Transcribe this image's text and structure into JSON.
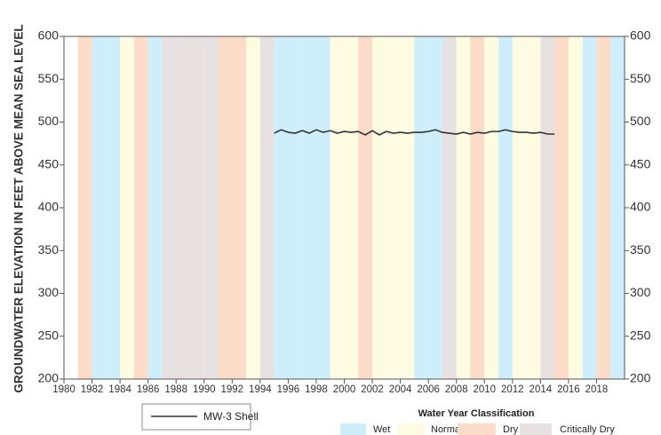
{
  "chart_data": {
    "type": "line",
    "y_label": "GROUNDWATER ELEVATION IN FEET ABOVE MEAN SEA LEVEL",
    "xlim": [
      1980,
      2020
    ],
    "xticks": [
      1980,
      1982,
      1984,
      1986,
      1988,
      1990,
      1992,
      1994,
      1996,
      1998,
      2000,
      2002,
      2004,
      2006,
      2008,
      2010,
      2012,
      2014,
      2016,
      2018
    ],
    "ylim": [
      200,
      600
    ],
    "yticks": [
      200,
      250,
      300,
      350,
      400,
      450,
      500,
      550,
      600
    ],
    "series": [
      {
        "name": "MW-3 Shell",
        "color": "#333333",
        "x": [
          1995,
          1995.5,
          1996,
          1996.5,
          1997,
          1997.5,
          1998,
          1998.5,
          1999,
          1999.5,
          2000,
          2000.5,
          2001,
          2001.5,
          2002,
          2002.5,
          2003,
          2003.5,
          2004,
          2004.5,
          2005,
          2005.5,
          2006,
          2006.5,
          2007,
          2007.5,
          2008,
          2008.5,
          2009,
          2009.5,
          2010,
          2010.5,
          2011,
          2011.5,
          2012,
          2012.5,
          2013,
          2013.5,
          2014,
          2014.5,
          2015
        ],
        "values": [
          487,
          491,
          488,
          487,
          490,
          487,
          491,
          488,
          490,
          487,
          489,
          488,
          489,
          485,
          490,
          485,
          489,
          487,
          488,
          487,
          488,
          488,
          489,
          491,
          488,
          487,
          486,
          488,
          486,
          488,
          487,
          489,
          489,
          491,
          489,
          488,
          488,
          487,
          488,
          486,
          486
        ]
      }
    ],
    "classification": {
      "title": "Water Year Classification",
      "classes": [
        {
          "name": "Wet",
          "color": "#cdeefa"
        },
        {
          "name": "Normal",
          "color": "#fdfbe2"
        },
        {
          "name": "Dry",
          "color": "#fbdcc8"
        },
        {
          "name": "Critically Dry",
          "color": "#e7e1e1"
        }
      ]
    },
    "bands": [
      {
        "year": 1981,
        "class": 2
      },
      {
        "year": 1982,
        "class": 0
      },
      {
        "year": 1983,
        "class": 0
      },
      {
        "year": 1984,
        "class": 1
      },
      {
        "year": 1985,
        "class": 2
      },
      {
        "year": 1986,
        "class": 0
      },
      {
        "year": 1987,
        "class": 3
      },
      {
        "year": 1988,
        "class": 3
      },
      {
        "year": 1989,
        "class": 3
      },
      {
        "year": 1990,
        "class": 3
      },
      {
        "year": 1991,
        "class": 2
      },
      {
        "year": 1992,
        "class": 2
      },
      {
        "year": 1993,
        "class": 1
      },
      {
        "year": 1994,
        "class": 3
      },
      {
        "year": 1995,
        "class": 0
      },
      {
        "year": 1996,
        "class": 0
      },
      {
        "year": 1997,
        "class": 0
      },
      {
        "year": 1998,
        "class": 0
      },
      {
        "year": 1999,
        "class": 1
      },
      {
        "year": 2000,
        "class": 1
      },
      {
        "year": 2001,
        "class": 2
      },
      {
        "year": 2002,
        "class": 1
      },
      {
        "year": 2003,
        "class": 1
      },
      {
        "year": 2004,
        "class": 1
      },
      {
        "year": 2005,
        "class": 0
      },
      {
        "year": 2006,
        "class": 0
      },
      {
        "year": 2007,
        "class": 3
      },
      {
        "year": 2008,
        "class": 1
      },
      {
        "year": 2009,
        "class": 2
      },
      {
        "year": 2010,
        "class": 1
      },
      {
        "year": 2011,
        "class": 0
      },
      {
        "year": 2012,
        "class": 1
      },
      {
        "year": 2013,
        "class": 1
      },
      {
        "year": 2014,
        "class": 3
      },
      {
        "year": 2015,
        "class": 2
      },
      {
        "year": 2016,
        "class": 1
      },
      {
        "year": 2017,
        "class": 0
      },
      {
        "year": 2018,
        "class": 2
      },
      {
        "year": 2019,
        "class": 0
      }
    ]
  }
}
